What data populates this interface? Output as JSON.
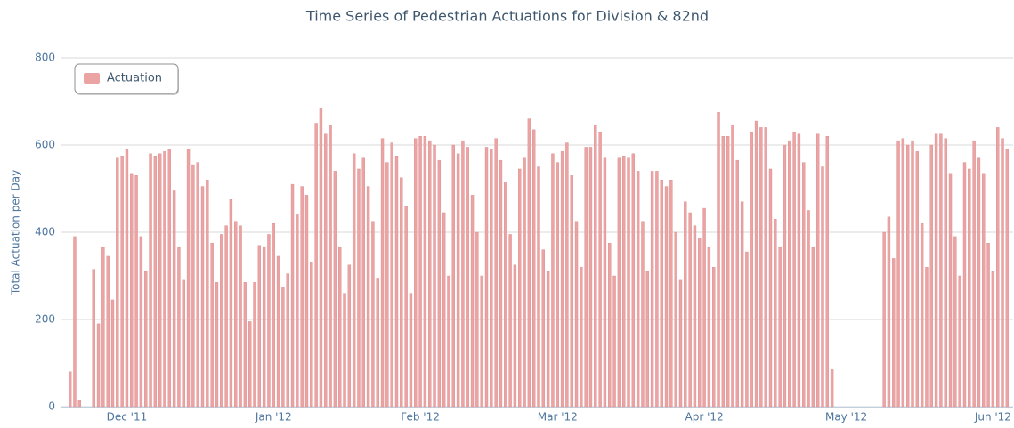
{
  "chart_data": {
    "type": "bar",
    "title": "Time Series of Pedestrian Actuations for Division & 82nd",
    "ylabel": "Total Actuation per Day",
    "legend": "top-left",
    "grid": true,
    "ylim": [
      0,
      800
    ],
    "yticks": [
      0,
      200,
      400,
      600,
      800
    ],
    "categories": [
      null,
      null,
      null,
      null,
      null,
      null,
      null,
      null,
      null,
      null,
      null,
      null,
      "Dec '11",
      null,
      null,
      null,
      null,
      null,
      null,
      null,
      null,
      null,
      null,
      null,
      null,
      null,
      null,
      null,
      null,
      null,
      null,
      null,
      null,
      null,
      null,
      null,
      null,
      null,
      null,
      null,
      null,
      null,
      null,
      "Jan '12",
      null,
      null,
      null,
      null,
      null,
      null,
      null,
      null,
      null,
      null,
      null,
      null,
      null,
      null,
      null,
      null,
      null,
      null,
      null,
      null,
      null,
      null,
      null,
      null,
      null,
      null,
      null,
      null,
      null,
      null,
      "Feb '12",
      null,
      null,
      null,
      null,
      null,
      null,
      null,
      null,
      null,
      null,
      null,
      null,
      null,
      null,
      null,
      null,
      null,
      null,
      null,
      null,
      null,
      null,
      null,
      null,
      null,
      null,
      null,
      null,
      "Mar '12",
      null,
      null,
      null,
      null,
      null,
      null,
      null,
      null,
      null,
      null,
      null,
      null,
      null,
      null,
      null,
      null,
      null,
      null,
      null,
      null,
      null,
      null,
      null,
      null,
      null,
      null,
      null,
      null,
      null,
      null,
      "Apr '12",
      null,
      null,
      null,
      null,
      null,
      null,
      null,
      null,
      null,
      null,
      null,
      null,
      null,
      null,
      null,
      null,
      null,
      null,
      null,
      null,
      null,
      null,
      null,
      null,
      null,
      null,
      null,
      null,
      null,
      "May '12",
      null,
      null,
      null,
      null,
      null,
      null,
      null,
      null,
      null,
      null,
      null,
      null,
      null,
      null,
      null,
      null,
      null,
      null,
      null,
      null,
      null,
      null,
      null,
      null,
      null,
      null,
      null,
      null,
      null,
      null,
      "Jun '12",
      null,
      null,
      null
    ],
    "series": [
      {
        "name": "Actuation",
        "color": "#eba3a3",
        "values": [
          80,
          390,
          15,
          0,
          0,
          315,
          190,
          365,
          345,
          245,
          570,
          575,
          590,
          535,
          530,
          390,
          310,
          580,
          575,
          580,
          585,
          590,
          495,
          365,
          290,
          590,
          555,
          560,
          505,
          520,
          375,
          285,
          395,
          415,
          475,
          425,
          415,
          285,
          195,
          285,
          370,
          365,
          395,
          420,
          345,
          275,
          305,
          510,
          440,
          505,
          485,
          330,
          650,
          685,
          625,
          645,
          540,
          365,
          260,
          325,
          580,
          545,
          570,
          505,
          425,
          295,
          615,
          560,
          605,
          575,
          525,
          460,
          260,
          615,
          620,
          620,
          610,
          600,
          565,
          445,
          300,
          600,
          580,
          610,
          595,
          485,
          400,
          300,
          595,
          590,
          615,
          565,
          515,
          395,
          325,
          545,
          570,
          660,
          635,
          550,
          360,
          310,
          580,
          560,
          585,
          605,
          530,
          425,
          320,
          595,
          595,
          645,
          630,
          570,
          375,
          300,
          570,
          575,
          570,
          580,
          540,
          425,
          310,
          540,
          540,
          520,
          505,
          520,
          400,
          290,
          470,
          445,
          415,
          385,
          455,
          365,
          320,
          675,
          620,
          620,
          645,
          565,
          470,
          355,
          630,
          655,
          640,
          640,
          545,
          430,
          365,
          600,
          610,
          630,
          625,
          560,
          450,
          365,
          625,
          550,
          620,
          85,
          0,
          0,
          0,
          0,
          0,
          0,
          0,
          0,
          0,
          0,
          400,
          435,
          340,
          610,
          615,
          600,
          610,
          585,
          420,
          320,
          600,
          625,
          625,
          615,
          535,
          390,
          300,
          560,
          545,
          610,
          570,
          535,
          375,
          310,
          640,
          615,
          590
        ]
      }
    ]
  }
}
